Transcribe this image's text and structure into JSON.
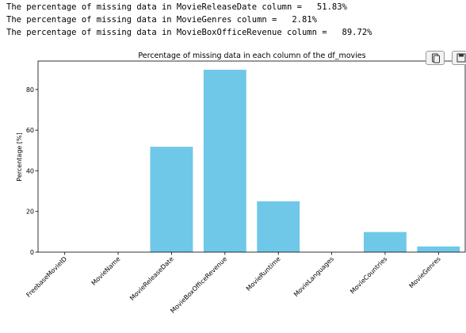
{
  "output": {
    "lines": [
      "The percentage of missing data in MovieReleaseDate column =   51.83%",
      "The percentage of missing data in MovieGenres column =   2.81%",
      "The percentage of missing data in MovieBoxOfficeRevenue column =   89.72%"
    ]
  },
  "toolbar": {
    "copy_icon": "copy-icon",
    "save_icon": "save-icon"
  },
  "chart_data": {
    "type": "bar",
    "title": "Percentage of missing data in each column of the df_movies",
    "xlabel": "",
    "ylabel": "Percentage [%]",
    "categories": [
      "FreebaseMovieID",
      "MovieName",
      "MovieReleaseDate",
      "MovieBoxOfficeRevenue",
      "MovieRuntime",
      "MovieLanguages",
      "MovieCountries",
      "MovieGenres"
    ],
    "values": [
      0,
      0,
      51.83,
      89.72,
      25.0,
      0,
      9.9,
      2.81
    ],
    "ylim": [
      0,
      94
    ],
    "yticks": [
      0,
      20,
      40,
      60,
      80
    ],
    "bar_color": "#70c8e8",
    "grid": false,
    "legend": "none"
  }
}
